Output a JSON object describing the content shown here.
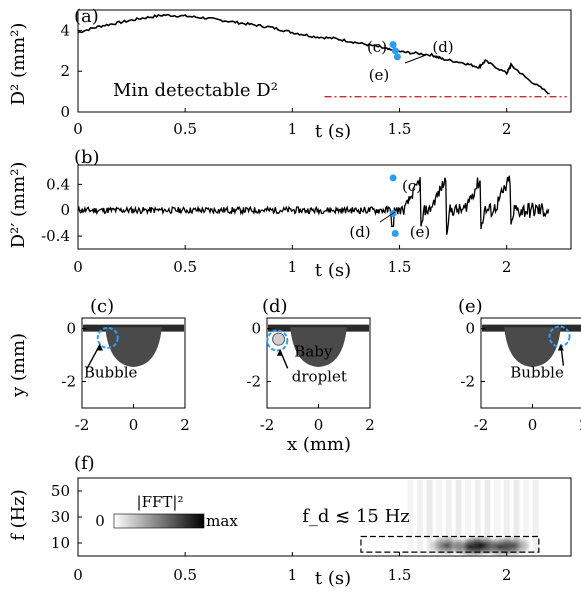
{
  "chart_data": [
    {
      "panel": "(a)",
      "type": "line",
      "xlabel": "t (s)",
      "ylabel": "D² (mm²)",
      "xlim": [
        0,
        2.3
      ],
      "ylim": [
        0,
        5
      ],
      "xticks": [
        "0",
        "0.5",
        "1",
        "1.5",
        "2"
      ],
      "yticks": [
        "0",
        "2",
        "4"
      ],
      "x": [
        0,
        0.1,
        0.2,
        0.3,
        0.4,
        0.5,
        0.6,
        0.7,
        0.8,
        0.9,
        1.0,
        1.1,
        1.2,
        1.3,
        1.4,
        1.47,
        1.55,
        1.65,
        1.7,
        1.8,
        1.87,
        1.9,
        2.0,
        2.02,
        2.1,
        2.2
      ],
      "y": [
        3.9,
        4.2,
        4.4,
        4.6,
        4.75,
        4.7,
        4.6,
        4.45,
        4.3,
        4.15,
        3.9,
        3.7,
        3.6,
        3.4,
        3.2,
        3.0,
        2.9,
        2.8,
        2.6,
        2.4,
        2.2,
        2.5,
        1.9,
        2.3,
        1.6,
        0.9
      ],
      "threshold": {
        "label": "Min detectable D²",
        "value": 0.75,
        "color": "#d62728"
      },
      "markers": [
        {
          "label": "(c)",
          "x": 1.47,
          "y": 3.3
        },
        {
          "label": "(d)",
          "x": 1.48,
          "y": 3.0
        },
        {
          "label": "(e)",
          "x": 1.49,
          "y": 2.7
        }
      ]
    },
    {
      "panel": "(b)",
      "type": "line",
      "xlabel": "t (s)",
      "ylabel": "D²′ (mm²)",
      "xlim": [
        0,
        2.3
      ],
      "ylim": [
        -0.6,
        0.7
      ],
      "xticks": [
        "0",
        "0.5",
        "1",
        "1.5",
        "2"
      ],
      "yticks": [
        "-0.4",
        "0",
        "0.4"
      ],
      "noise_until": 1.3,
      "sawtooth_peaks_t": [
        1.6,
        1.72,
        1.88,
        2.02
      ],
      "markers": [
        {
          "label": "(c)",
          "x": 1.47,
          "y": 0.5
        },
        {
          "label": "(d)",
          "x": 1.47,
          "y": -0.05
        },
        {
          "label": "(e)",
          "x": 1.48,
          "y": -0.36
        }
      ]
    },
    {
      "panel": "(c)-(e)",
      "type": "image",
      "xlabel": "x (mm)",
      "ylabel": "y (mm)",
      "xticks": [
        "-2",
        "0",
        "2"
      ],
      "yticks": [
        "0",
        "-2"
      ],
      "images": [
        {
          "id": "(c)",
          "annotation": "Bubble"
        },
        {
          "id": "(d)",
          "annotation": "Baby droplet"
        },
        {
          "id": "(e)",
          "annotation": "Bubble"
        }
      ]
    },
    {
      "panel": "(f)",
      "type": "heatmap",
      "xlabel": "t (s)",
      "ylabel": "f (Hz)",
      "xlim": [
        0,
        2.3
      ],
      "ylim": [
        0,
        60
      ],
      "xticks": [
        "0",
        "0.5",
        "1",
        "1.5",
        "2"
      ],
      "yticks": [
        "10",
        "30",
        "50"
      ],
      "colorbar": {
        "label": "|FFT|²",
        "min": "0",
        "max": "max"
      },
      "annotation": "f_d ≲ 15 Hz",
      "box": {
        "t": [
          1.32,
          2.15
        ],
        "f": [
          3,
          15
        ]
      },
      "blobs": [
        {
          "t": 1.72,
          "f": 8,
          "v": 0.75
        },
        {
          "t": 1.83,
          "f": 7,
          "v": 0.85
        },
        {
          "t": 1.88,
          "f": 8,
          "v": 1.0
        },
        {
          "t": 1.97,
          "f": 7,
          "v": 0.8
        },
        {
          "t": 2.03,
          "f": 8,
          "v": 0.7
        }
      ]
    }
  ]
}
